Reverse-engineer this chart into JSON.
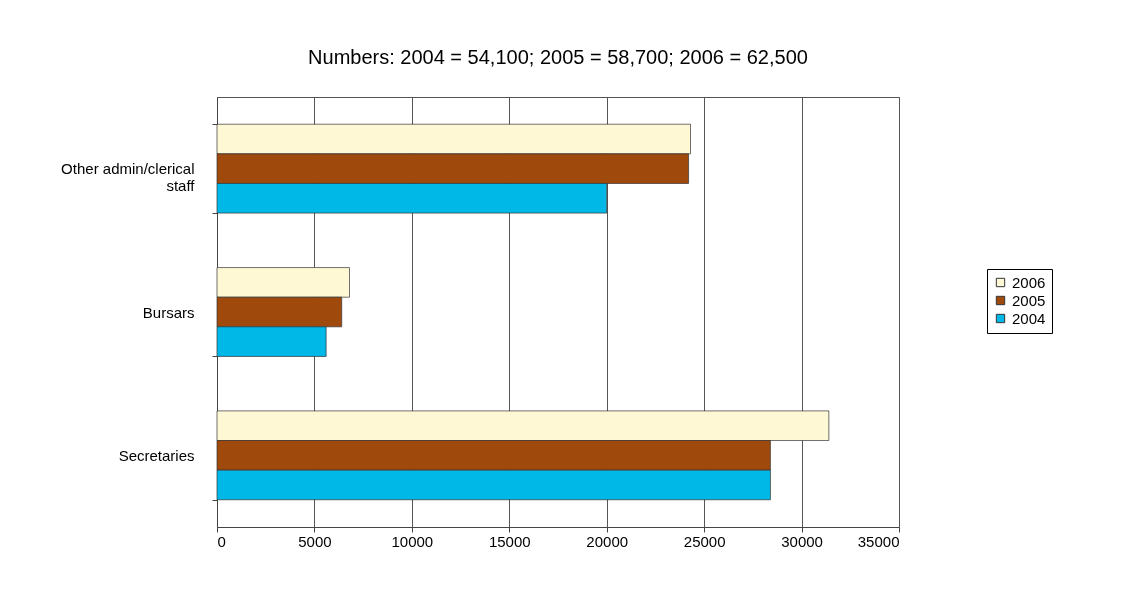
{
  "chart_data": {
    "type": "bar",
    "orientation": "horizontal",
    "title": "Numbers: 2004 = 54,100; 2005 = 58,700; 2006 = 62,500",
    "categories": [
      "Other admin/clerical staff",
      "Bursars",
      "Secretaries"
    ],
    "series": [
      {
        "name": "2006",
        "color": "#fff8d4",
        "values": [
          24300,
          6800,
          31400
        ]
      },
      {
        "name": "2005",
        "color": "#a0490c",
        "values": [
          24200,
          6400,
          28400
        ]
      },
      {
        "name": "2004",
        "color": "#00b8e8",
        "values": [
          20000,
          5600,
          28400
        ]
      }
    ],
    "xlim": [
      0,
      35000
    ],
    "xticks": [
      0,
      5000,
      10000,
      15000,
      20000,
      25000,
      30000,
      35000
    ],
    "grid": "x",
    "legend": "right"
  }
}
